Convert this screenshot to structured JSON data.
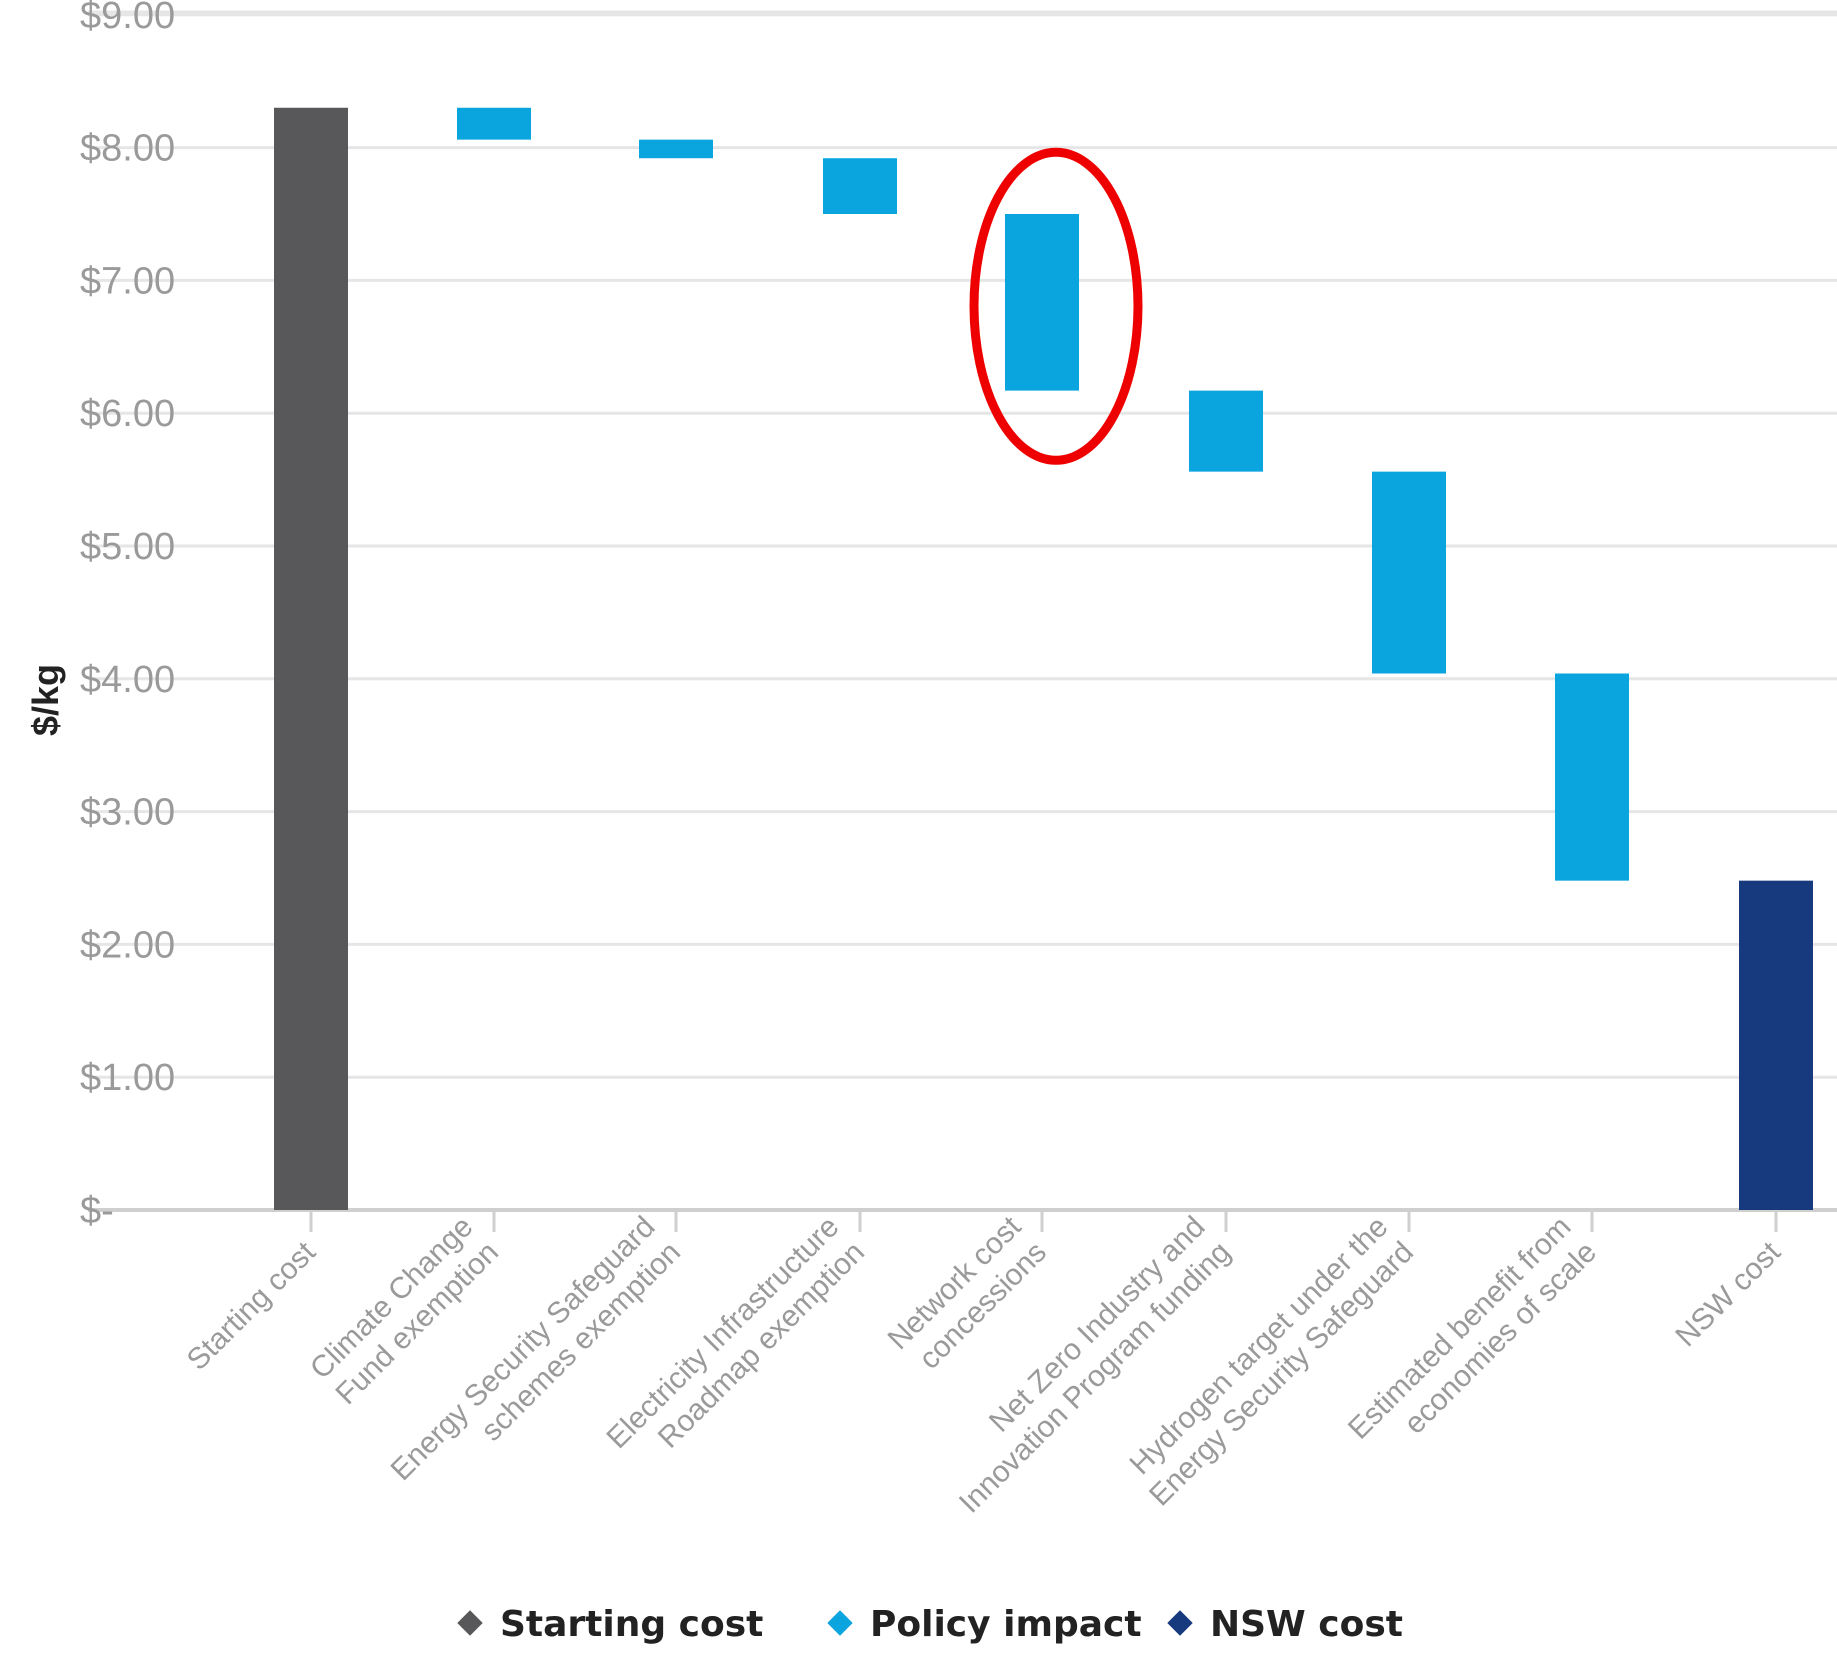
{
  "chart_data": {
    "type": "bar",
    "subtype": "waterfall",
    "ylabel": "$/kg",
    "ylim": [
      0,
      9
    ],
    "y_ticks": [
      "$-",
      "$1.00",
      "$2.00",
      "$3.00",
      "$4.00",
      "$5.00",
      "$6.00",
      "$7.00",
      "$8.00",
      "$9.00"
    ],
    "grid": true,
    "legend_position": "bottom",
    "categories": [
      "Starting cost",
      "Climate Change Fund exemption",
      "Energy Security Safeguard schemes exemption",
      "Electricity Infrastructure Roadmap exemption",
      "Network cost concessions",
      "Net Zero Industry and Innovation Program funding",
      "Hydrogen target under the Energy Security Safeguard",
      "Estimated benefit from economies of scale",
      "NSW cost"
    ],
    "category_lines": [
      [
        "Starting cost"
      ],
      [
        "Climate Change",
        "Fund exemption"
      ],
      [
        "Energy Security Safeguard",
        "schemes exemption"
      ],
      [
        "Electricity Infrastructure",
        "Roadmap exemption"
      ],
      [
        "Network cost",
        "concessions"
      ],
      [
        "Net Zero Industry and",
        "Innovation Program funding"
      ],
      [
        "Hydrogen target under the",
        "Energy Security Safeguard"
      ],
      [
        "Estimated benefit from",
        "economies of scale"
      ],
      [
        "NSW cost"
      ]
    ],
    "bars": [
      {
        "series": "Starting cost",
        "start": 0.0,
        "end": 8.3
      },
      {
        "series": "Policy impact",
        "start": 8.3,
        "end": 8.06
      },
      {
        "series": "Policy impact",
        "start": 8.06,
        "end": 7.92
      },
      {
        "series": "Policy impact",
        "start": 7.92,
        "end": 7.5
      },
      {
        "series": "Policy impact",
        "start": 7.5,
        "end": 6.17
      },
      {
        "series": "Policy impact",
        "start": 6.17,
        "end": 5.56
      },
      {
        "series": "Policy impact",
        "start": 5.56,
        "end": 4.04
      },
      {
        "series": "Policy impact",
        "start": 4.04,
        "end": 2.48
      },
      {
        "series": "NSW cost",
        "start": 0.0,
        "end": 2.48
      }
    ],
    "series": [
      {
        "name": "Starting cost",
        "color": "#58585a"
      },
      {
        "name": "Policy impact",
        "color": "#0aa5de"
      },
      {
        "name": "NSW cost",
        "color": "#173a7e"
      }
    ],
    "annotation": {
      "shape": "red-ellipse",
      "target_category": "Network cost concessions",
      "color": "#ee0000"
    }
  }
}
